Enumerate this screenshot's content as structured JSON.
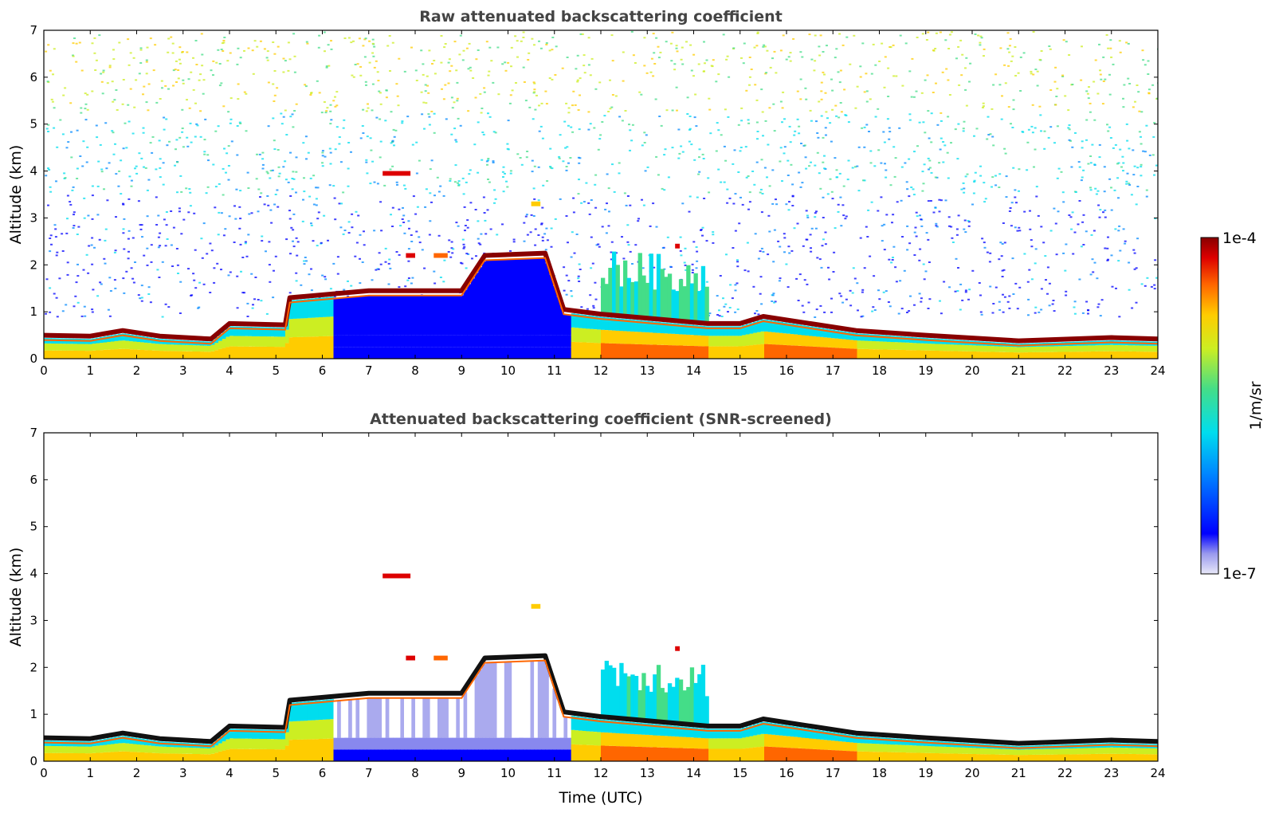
{
  "chart_data": [
    {
      "type": "heatmap",
      "title": "Raw attenuated backscattering coefficient",
      "xlabel": "",
      "ylabel": "Altitude (km)",
      "xlim": [
        0,
        24
      ],
      "ylim": [
        0,
        7
      ],
      "xticks": [
        "0",
        "1",
        "2",
        "3",
        "4",
        "5",
        "6",
        "7",
        "8",
        "9",
        "10",
        "11",
        "12",
        "13",
        "14",
        "15",
        "16",
        "17",
        "18",
        "19",
        "20",
        "21",
        "22",
        "23",
        "24"
      ],
      "yticks": [
        "0",
        "1",
        "2",
        "3",
        "4",
        "5",
        "6",
        "7"
      ],
      "screened": false,
      "cloud_base": [
        {
          "t": 0,
          "z": 0.5
        },
        {
          "t": 1,
          "z": 0.48
        },
        {
          "t": 1.7,
          "z": 0.6
        },
        {
          "t": 2.5,
          "z": 0.48
        },
        {
          "t": 3.6,
          "z": 0.42
        },
        {
          "t": 4.0,
          "z": 0.75
        },
        {
          "t": 5.2,
          "z": 0.72
        },
        {
          "t": 5.3,
          "z": 1.3
        },
        {
          "t": 7,
          "z": 1.45
        },
        {
          "t": 9,
          "z": 1.45
        },
        {
          "t": 9.5,
          "z": 2.2
        },
        {
          "t": 10.8,
          "z": 2.25
        },
        {
          "t": 11.2,
          "z": 1.05
        },
        {
          "t": 12,
          "z": 0.95
        },
        {
          "t": 14.3,
          "z": 0.75
        },
        {
          "t": 15,
          "z": 0.75
        },
        {
          "t": 15.5,
          "z": 0.9
        },
        {
          "t": 17.5,
          "z": 0.6
        },
        {
          "t": 19,
          "z": 0.5
        },
        {
          "t": 21,
          "z": 0.38
        },
        {
          "t": 23,
          "z": 0.45
        },
        {
          "t": 24,
          "z": 0.42
        }
      ]
    },
    {
      "type": "heatmap",
      "title": "Attenuated backscattering coefficient (SNR-screened)",
      "xlabel": "Time (UTC)",
      "ylabel": "Altitude (km)",
      "xlim": [
        0,
        24
      ],
      "ylim": [
        0,
        7
      ],
      "xticks": [
        "0",
        "1",
        "2",
        "3",
        "4",
        "5",
        "6",
        "7",
        "8",
        "9",
        "10",
        "11",
        "12",
        "13",
        "14",
        "15",
        "16",
        "17",
        "18",
        "19",
        "20",
        "21",
        "22",
        "23",
        "24"
      ],
      "yticks": [
        "0",
        "1",
        "2",
        "3",
        "4",
        "5",
        "6",
        "7"
      ],
      "screened": true,
      "cloud_base": [
        {
          "t": 0,
          "z": 0.5
        },
        {
          "t": 1,
          "z": 0.48
        },
        {
          "t": 1.7,
          "z": 0.6
        },
        {
          "t": 2.5,
          "z": 0.48
        },
        {
          "t": 3.6,
          "z": 0.42
        },
        {
          "t": 4.0,
          "z": 0.75
        },
        {
          "t": 5.2,
          "z": 0.72
        },
        {
          "t": 5.3,
          "z": 1.3
        },
        {
          "t": 7,
          "z": 1.45
        },
        {
          "t": 9,
          "z": 1.45
        },
        {
          "t": 9.5,
          "z": 2.2
        },
        {
          "t": 10.8,
          "z": 2.25
        },
        {
          "t": 11.2,
          "z": 1.05
        },
        {
          "t": 12,
          "z": 0.95
        },
        {
          "t": 14.3,
          "z": 0.75
        },
        {
          "t": 15,
          "z": 0.75
        },
        {
          "t": 15.5,
          "z": 0.9
        },
        {
          "t": 17.5,
          "z": 0.6
        },
        {
          "t": 19,
          "z": 0.5
        },
        {
          "t": 21,
          "z": 0.38
        },
        {
          "t": 23,
          "z": 0.45
        },
        {
          "t": 24,
          "z": 0.42
        }
      ]
    }
  ],
  "colorbar": {
    "max_label": "1e-4",
    "min_label": "1e-7",
    "unit_label": "1/m/sr",
    "scale": "log",
    "colors": [
      "#e8e8f8",
      "#9999ee",
      "#0000ff",
      "#0088ff",
      "#00ddee",
      "#44dd88",
      "#ccee22",
      "#ffcc00",
      "#ff6600",
      "#dd0000",
      "#880000"
    ]
  }
}
